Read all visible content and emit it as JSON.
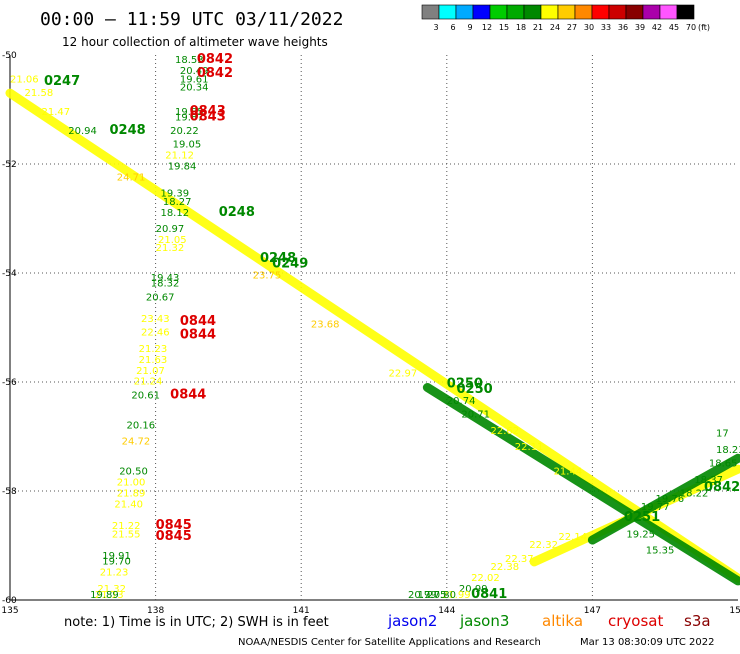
{
  "title": "00:00 – 11:59 UTC 03/11/2022",
  "subtitle": "12 hour collection of altimeter wave heights",
  "note": "note: 1) Time is in UTC; 2) SWH is in feet",
  "credit": "NOAA/NESDIS Center for Satellite Applications and Research",
  "generated": "Mar 13 08:30:09 UTC 2022",
  "colorbar": {
    "labels": [
      "3",
      "6",
      "9",
      "12",
      "15",
      "18",
      "21",
      "24",
      "27",
      "30",
      "33",
      "36",
      "39",
      "42",
      "45",
      "70"
    ],
    "colors": [
      "#808080",
      "#00ffff",
      "#00aaff",
      "#0000ff",
      "#00cc00",
      "#00aa00",
      "#008800",
      "#ffff00",
      "#ffcc00",
      "#ff8800",
      "#ff0000",
      "#cc0000",
      "#880000",
      "#aa00aa",
      "#ff55ff",
      "#000000"
    ],
    "unit": "(ft)"
  },
  "satellites": [
    {
      "name": "jason2",
      "color": "#0000ee"
    },
    {
      "name": "jason3",
      "color": "#008800"
    },
    {
      "name": "altika",
      "color": "#ff8800"
    },
    {
      "name": "cryosat",
      "color": "#dd0000"
    },
    {
      "name": "s3a",
      "color": "#880000"
    }
  ],
  "chart_data": {
    "type": "scatter",
    "xlim": [
      135,
      150
    ],
    "ylim": [
      -60,
      -50
    ],
    "xticks": [
      "135",
      "138",
      "141",
      "144",
      "147",
      "150"
    ],
    "yticks": [
      "-50",
      "-52",
      "-54",
      "-56",
      "-58",
      "-60"
    ],
    "grid": true,
    "value_labels": [
      {
        "x": 138.4,
        "y": -50.05,
        "text": "18.53",
        "color": "#008800"
      },
      {
        "x": 138.5,
        "y": -50.35,
        "text": "20.49",
        "color": "#008800"
      },
      {
        "x": 138.5,
        "y": -50.5,
        "text": "19.61",
        "color": "#008800"
      },
      {
        "x": 138.5,
        "y": -50.65,
        "text": "20.34",
        "color": "#008800"
      },
      {
        "x": 138.4,
        "y": -51.1,
        "text": "19.85",
        "color": "#008800"
      },
      {
        "x": 138.4,
        "y": -51.2,
        "text": "19.87",
        "color": "#008800"
      },
      {
        "x": 138.3,
        "y": -51.45,
        "text": "20.22",
        "color": "#008800"
      },
      {
        "x": 138.35,
        "y": -51.7,
        "text": "19.05",
        "color": "#008800"
      },
      {
        "x": 138.2,
        "y": -51.9,
        "text": "21.12",
        "color": "#ffff00"
      },
      {
        "x": 138.25,
        "y": -52.1,
        "text": "19.84",
        "color": "#008800"
      },
      {
        "x": 138.1,
        "y": -52.6,
        "text": "19.39",
        "color": "#008800"
      },
      {
        "x": 138.15,
        "y": -52.75,
        "text": "18.27",
        "color": "#008800"
      },
      {
        "x": 138.1,
        "y": -52.95,
        "text": "18.12",
        "color": "#008800"
      },
      {
        "x": 138.0,
        "y": -53.25,
        "text": "20.97",
        "color": "#008800"
      },
      {
        "x": 138.05,
        "y": -53.45,
        "text": "21.05",
        "color": "#ffff00"
      },
      {
        "x": 138.0,
        "y": -53.6,
        "text": "21.32",
        "color": "#ffff00"
      },
      {
        "x": 137.9,
        "y": -54.15,
        "text": "19.43",
        "color": "#008800"
      },
      {
        "x": 137.9,
        "y": -54.25,
        "text": "18.32",
        "color": "#008800"
      },
      {
        "x": 137.8,
        "y": -54.5,
        "text": "20.67",
        "color": "#008800"
      },
      {
        "x": 137.7,
        "y": -54.9,
        "text": "23.43",
        "color": "#ffff00"
      },
      {
        "x": 137.7,
        "y": -55.15,
        "text": "22.46",
        "color": "#ffff00"
      },
      {
        "x": 137.65,
        "y": -55.45,
        "text": "21.23",
        "color": "#ffff00"
      },
      {
        "x": 137.65,
        "y": -55.65,
        "text": "21.63",
        "color": "#ffff00"
      },
      {
        "x": 137.6,
        "y": -55.85,
        "text": "21.07",
        "color": "#ffff00"
      },
      {
        "x": 137.55,
        "y": -56.05,
        "text": "21.24",
        "color": "#ffff00"
      },
      {
        "x": 137.5,
        "y": -56.3,
        "text": "20.61",
        "color": "#008800"
      },
      {
        "x": 137.4,
        "y": -56.85,
        "text": "20.16",
        "color": "#008800"
      },
      {
        "x": 137.3,
        "y": -57.15,
        "text": "24.72",
        "color": "#ffcc00"
      },
      {
        "x": 137.25,
        "y": -57.7,
        "text": "20.50",
        "color": "#008800"
      },
      {
        "x": 137.2,
        "y": -57.9,
        "text": "21.00",
        "color": "#ffff00"
      },
      {
        "x": 137.2,
        "y": -58.1,
        "text": "21.89",
        "color": "#ffff00"
      },
      {
        "x": 137.15,
        "y": -58.3,
        "text": "21.40",
        "color": "#ffff00"
      },
      {
        "x": 137.1,
        "y": -58.7,
        "text": "21.22",
        "color": "#ffff00"
      },
      {
        "x": 137.1,
        "y": -58.85,
        "text": "21.55",
        "color": "#ffff00"
      },
      {
        "x": 136.9,
        "y": -59.25,
        "text": "19.91",
        "color": "#008800"
      },
      {
        "x": 136.9,
        "y": -59.35,
        "text": "19.70",
        "color": "#008800"
      },
      {
        "x": 136.85,
        "y": -59.55,
        "text": "21.23",
        "color": "#ffff00"
      },
      {
        "x": 136.8,
        "y": -59.85,
        "text": "21.32",
        "color": "#ffff00"
      },
      {
        "x": 136.75,
        "y": -60.05,
        "text": "21.13",
        "color": "#ffff00"
      },
      {
        "x": 136.65,
        "y": -60.45,
        "text": "19.89",
        "color": "#008800"
      },
      {
        "x": 135.0,
        "y": -50.5,
        "text": "21.06",
        "color": "#ffff00"
      },
      {
        "x": 135.3,
        "y": -50.75,
        "text": "21.58",
        "color": "#ffff00"
      },
      {
        "x": 135.65,
        "y": -51.1,
        "text": "21.47",
        "color": "#ffff00"
      },
      {
        "x": 136.2,
        "y": -51.45,
        "text": "20.94",
        "color": "#008800"
      },
      {
        "x": 137.2,
        "y": -52.3,
        "text": "24.71",
        "color": "#ffcc00"
      },
      {
        "x": 140.0,
        "y": -54.1,
        "text": "23.75",
        "color": "#ffcc00"
      },
      {
        "x": 141.2,
        "y": -55.0,
        "text": "23.68",
        "color": "#ffcc00"
      },
      {
        "x": 142.8,
        "y": -55.9,
        "text": "22.97",
        "color": "#ffff00"
      },
      {
        "x": 144.0,
        "y": -56.4,
        "text": "20.74",
        "color": "#008800"
      },
      {
        "x": 144.3,
        "y": -56.65,
        "text": "20.71",
        "color": "#008800"
      },
      {
        "x": 144.9,
        "y": -56.95,
        "text": "22.62",
        "color": "#ffff00"
      },
      {
        "x": 145.4,
        "y": -57.25,
        "text": "22.11",
        "color": "#ffff00"
      },
      {
        "x": 146.2,
        "y": -57.7,
        "text": "21.44",
        "color": "#ffff00"
      },
      {
        "x": 148.3,
        "y": -58.2,
        "text": "19.76",
        "color": "#008800"
      },
      {
        "x": 148.0,
        "y": -58.35,
        "text": "19.77",
        "color": "#008800"
      },
      {
        "x": 148.8,
        "y": -58.1,
        "text": "18.22",
        "color": "#008800"
      },
      {
        "x": 149.1,
        "y": -57.85,
        "text": "18.37",
        "color": "#008800"
      },
      {
        "x": 149.4,
        "y": -57.55,
        "text": "18.65",
        "color": "#008800"
      },
      {
        "x": 149.7,
        "y": -57.3,
        "text": "18.23",
        "color": "#008800"
      },
      {
        "x": 150.0,
        "y": -57.0,
        "text": "17",
        "color": "#008800"
      },
      {
        "x": 147.7,
        "y": -58.85,
        "text": "19.25",
        "color": "#008800"
      },
      {
        "x": 148.1,
        "y": -59.15,
        "text": "15.35",
        "color": "#008800"
      },
      {
        "x": 146.3,
        "y": -58.9,
        "text": "22.14",
        "color": "#ffff00"
      },
      {
        "x": 145.7,
        "y": -59.05,
        "text": "22.32",
        "color": "#ffff00"
      },
      {
        "x": 145.2,
        "y": -59.3,
        "text": "22.37",
        "color": "#ffff00"
      },
      {
        "x": 144.9,
        "y": -59.45,
        "text": "22.38",
        "color": "#ffff00"
      },
      {
        "x": 144.5,
        "y": -59.65,
        "text": "22.02",
        "color": "#ffff00"
      },
      {
        "x": 144.25,
        "y": -59.85,
        "text": "20.99",
        "color": "#008800"
      },
      {
        "x": 143.9,
        "y": -60.05,
        "text": "21.99",
        "color": "#ffff00"
      },
      {
        "x": 143.6,
        "y": -60.25,
        "text": "20.80",
        "color": "#008800"
      },
      {
        "x": 143.4,
        "y": -60.4,
        "text": "19.75",
        "color": "#008800"
      },
      {
        "x": 143.2,
        "y": -60.5,
        "text": "20.79",
        "color": "#008800"
      }
    ],
    "pass_times": [
      {
        "x": 138.85,
        "y": -50.05,
        "text": "0842",
        "color": "#dd0000"
      },
      {
        "x": 138.85,
        "y": -50.4,
        "text": "0842",
        "color": "#dd0000"
      },
      {
        "x": 138.7,
        "y": -51.1,
        "text": "0843",
        "color": "#dd0000"
      },
      {
        "x": 138.7,
        "y": -51.2,
        "text": "0843",
        "color": "#dd0000"
      },
      {
        "x": 138.5,
        "y": -54.95,
        "text": "0844",
        "color": "#dd0000"
      },
      {
        "x": 138.5,
        "y": -55.2,
        "text": "0844",
        "color": "#dd0000"
      },
      {
        "x": 138.3,
        "y": -56.3,
        "text": "0844",
        "color": "#dd0000"
      },
      {
        "x": 138.0,
        "y": -58.7,
        "text": "0845",
        "color": "#dd0000"
      },
      {
        "x": 138.0,
        "y": -58.9,
        "text": "0845",
        "color": "#dd0000"
      },
      {
        "x": 135.7,
        "y": -50.55,
        "text": "0247",
        "color": "#008800"
      },
      {
        "x": 137.05,
        "y": -51.45,
        "text": "0248",
        "color": "#008800"
      },
      {
        "x": 139.3,
        "y": -52.95,
        "text": "0248",
        "color": "#008800"
      },
      {
        "x": 140.15,
        "y": -53.8,
        "text": "0248",
        "color": "#008800"
      },
      {
        "x": 140.4,
        "y": -53.9,
        "text": "0249",
        "color": "#008800"
      },
      {
        "x": 144.0,
        "y": -56.1,
        "text": "0250",
        "color": "#008800"
      },
      {
        "x": 144.2,
        "y": -56.2,
        "text": "0250",
        "color": "#008800"
      },
      {
        "x": 147.65,
        "y": -58.55,
        "text": "0251",
        "color": "#008800"
      },
      {
        "x": 149.6,
        "y": -58.0,
        "text": "0842",
        "color": "#008800"
      },
      {
        "x": 144.5,
        "y": -60.45,
        "text": "0841",
        "color": "#008800"
      }
    ],
    "tracks": [
      {
        "from": [
          135.0,
          -50.7
        ],
        "to": [
          150.0,
          -59.6
        ],
        "color": "#ffff00"
      },
      {
        "from": [
          143.6,
          -56.1
        ],
        "to": [
          150.0,
          -59.65
        ],
        "color": "#008800"
      },
      {
        "from": [
          145.8,
          -59.3
        ],
        "to": [
          150.0,
          -57.6
        ],
        "color": "#ffff00"
      },
      {
        "from": [
          147.0,
          -58.9
        ],
        "to": [
          150.0,
          -57.4
        ],
        "color": "#008800"
      }
    ]
  }
}
